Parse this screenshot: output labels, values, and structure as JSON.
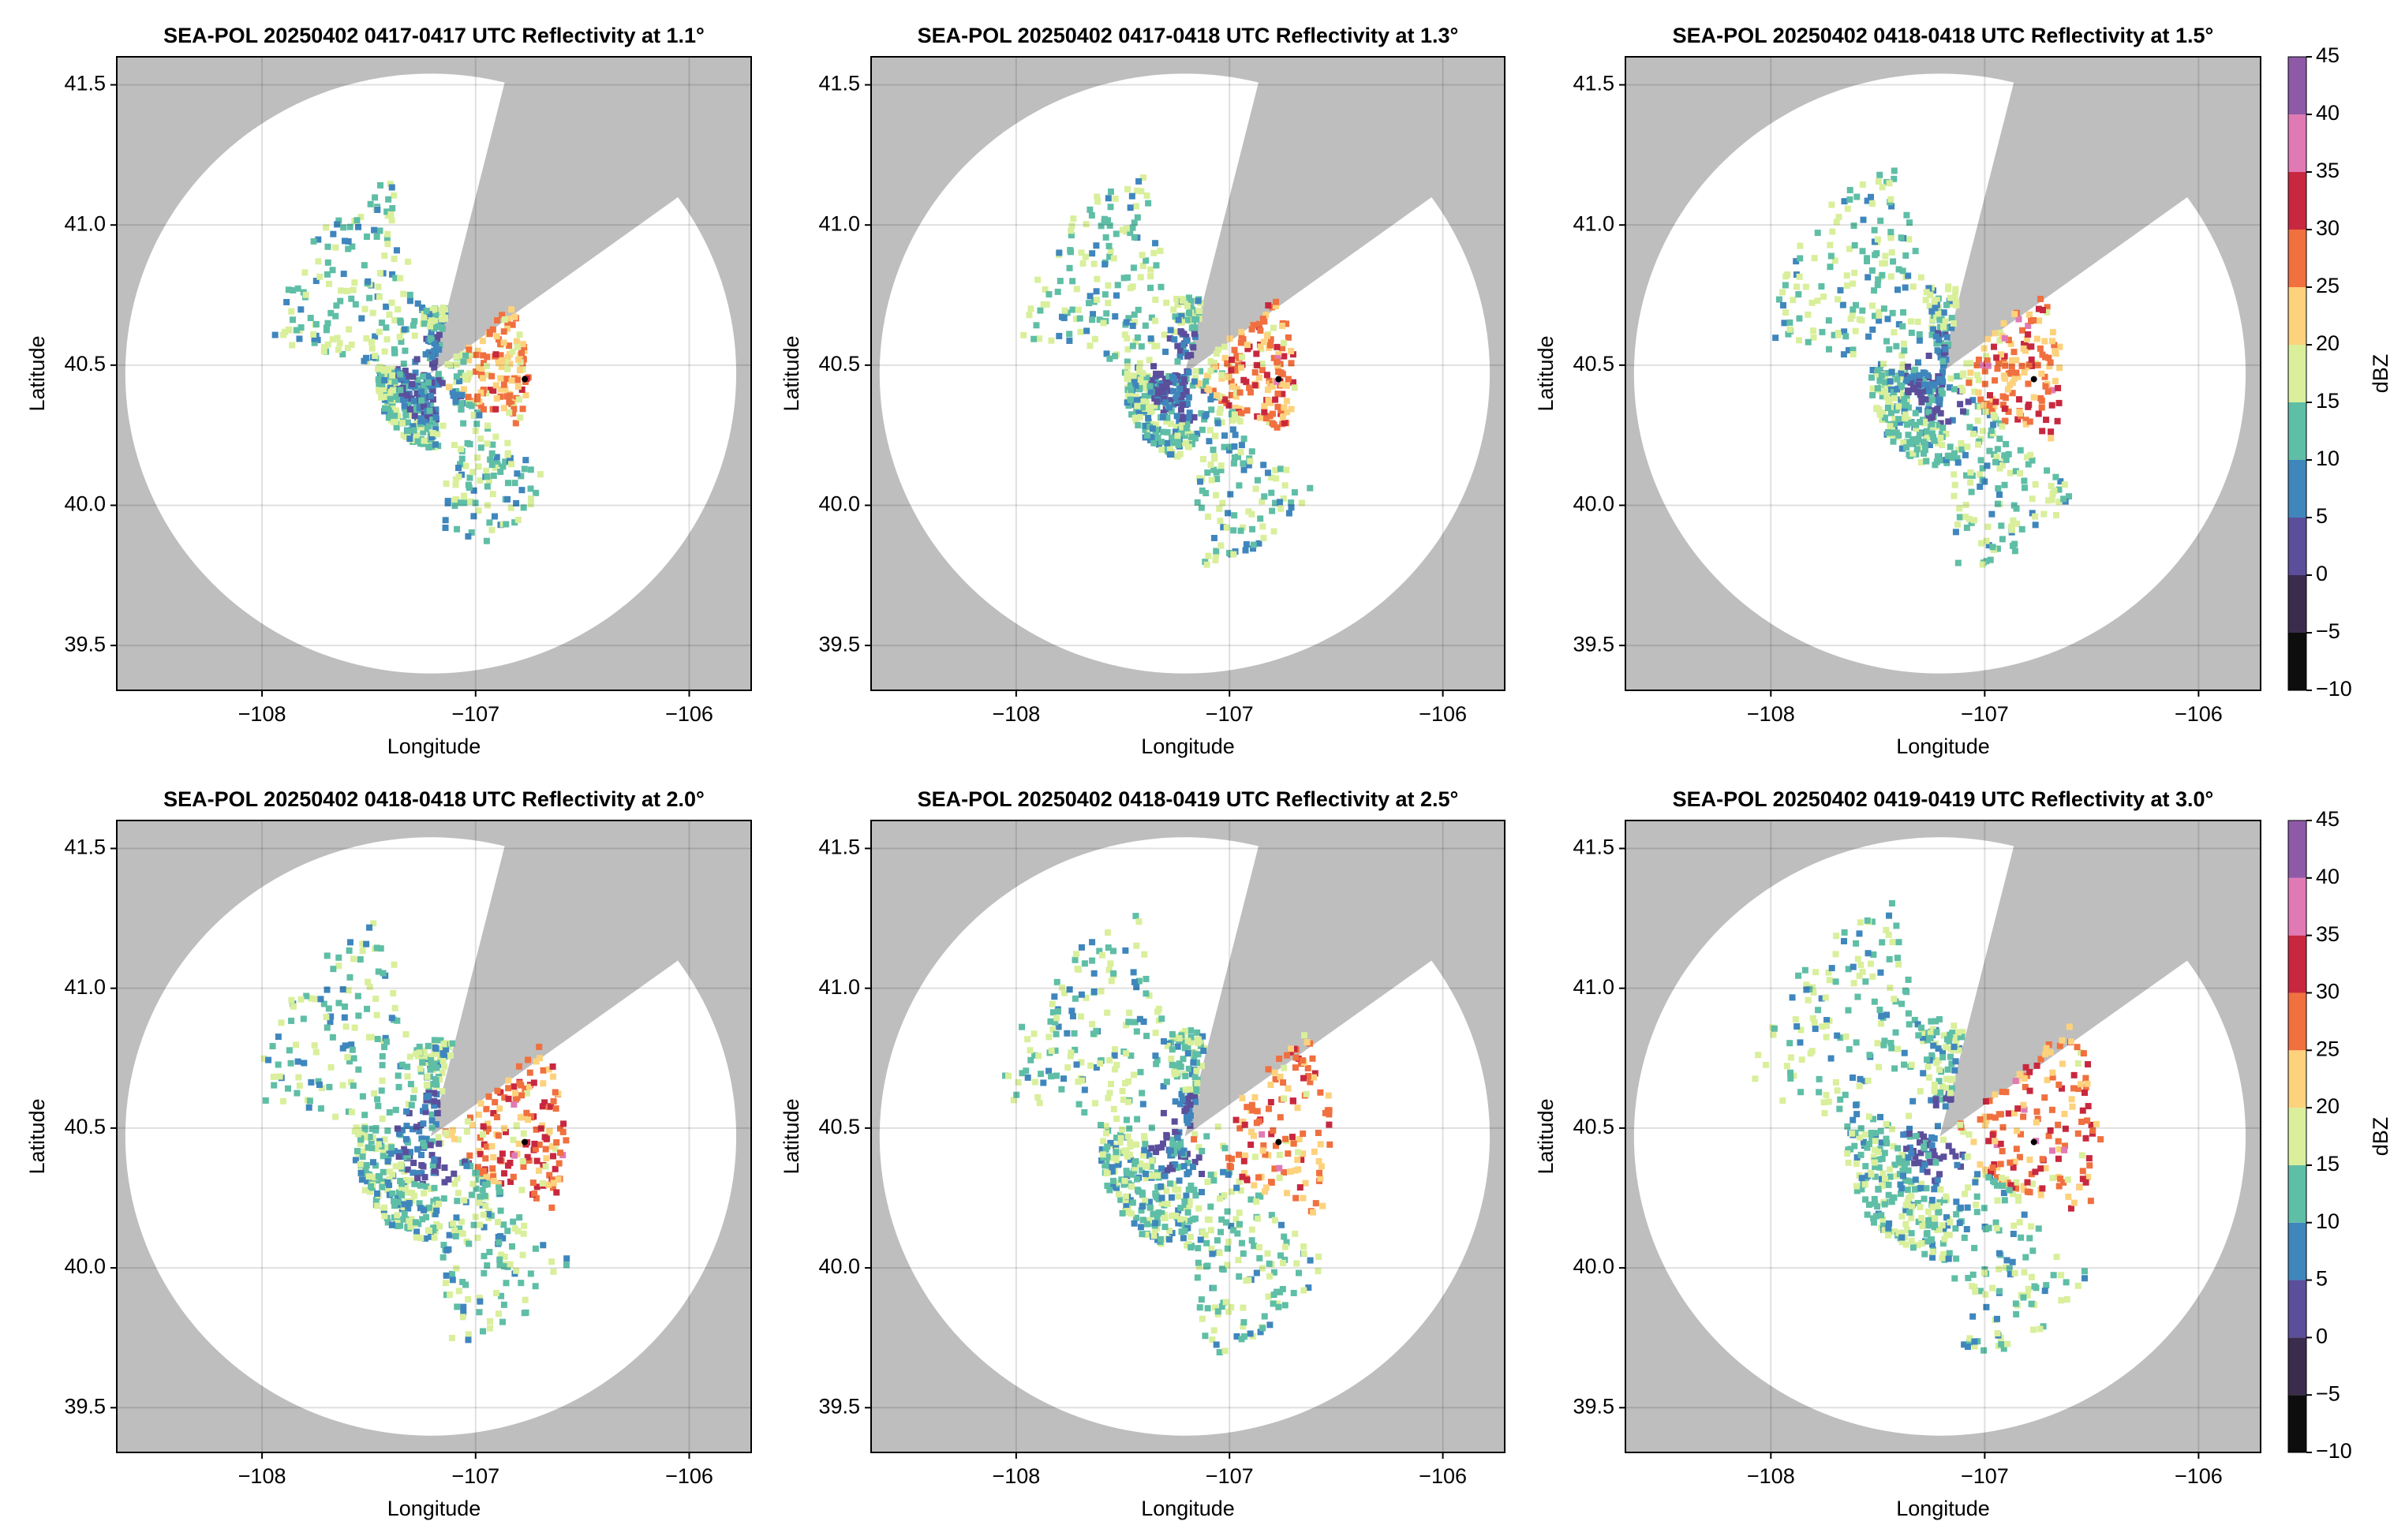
{
  "chart_data": [
    {
      "type": "radar-ppi",
      "title": "SEA-POL 20250402 0417-0417 UTC Reflectivity at 1.1°",
      "xlabel": "Longitude",
      "ylabel": "Latitude",
      "xlim": [
        -108.68,
        -105.71
      ],
      "ylim": [
        39.34,
        41.6
      ],
      "xticks": [
        {
          "value": -108,
          "label": "−108"
        },
        {
          "value": -107,
          "label": "−107"
        },
        {
          "value": -106,
          "label": "−106"
        }
      ],
      "yticks": [
        39.5,
        {
          "value": 40,
          "label": "40.0"
        },
        40.5,
        {
          "value": 41,
          "label": "41.0"
        },
        41.5
      ],
      "grid": true
    },
    {
      "type": "radar-ppi",
      "title": "SEA-POL 20250402 0417-0418 UTC Reflectivity at 1.3°",
      "xlabel": "Longitude",
      "ylabel": "Latitude",
      "xlim": [
        -108.68,
        -105.71
      ],
      "ylim": [
        39.34,
        41.6
      ],
      "xticks": [
        {
          "value": -108,
          "label": "−108"
        },
        {
          "value": -107,
          "label": "−107"
        },
        {
          "value": -106,
          "label": "−106"
        }
      ],
      "yticks": [
        39.5,
        {
          "value": 40,
          "label": "40.0"
        },
        40.5,
        {
          "value": 41,
          "label": "41.0"
        },
        41.5
      ],
      "grid": true
    },
    {
      "type": "radar-ppi",
      "title": "SEA-POL 20250402 0418-0418 UTC Reflectivity at 1.5°",
      "xlabel": "Longitude",
      "ylabel": "Latitude",
      "xlim": [
        -108.68,
        -105.71
      ],
      "ylim": [
        39.34,
        41.6
      ],
      "xticks": [
        {
          "value": -108,
          "label": "−108"
        },
        {
          "value": -107,
          "label": "−107"
        },
        {
          "value": -106,
          "label": "−106"
        }
      ],
      "yticks": [
        39.5,
        {
          "value": 40,
          "label": "40.0"
        },
        40.5,
        {
          "value": 41,
          "label": "41.0"
        },
        41.5
      ],
      "grid": true,
      "colorbar": {
        "label": "dBZ",
        "lim": [
          -10,
          45
        ],
        "ticks": [
          {
            "value": -10,
            "label": "−10"
          },
          {
            "value": -5,
            "label": "−5"
          },
          0,
          5,
          10,
          15,
          20,
          25,
          30,
          35,
          40,
          45
        ],
        "colors": [
          "#0d0d0d",
          "#3b2c4e",
          "#5b4f9c",
          "#3f86bd",
          "#5fbea6",
          "#d9ef9b",
          "#fdd27d",
          "#f0703f",
          "#c8283f",
          "#e07ab5",
          "#8e5aa8"
        ]
      }
    },
    {
      "type": "radar-ppi",
      "title": "SEA-POL 20250402 0418-0418 UTC Reflectivity at 2.0°",
      "xlabel": "Longitude",
      "ylabel": "Latitude",
      "xlim": [
        -108.68,
        -105.71
      ],
      "ylim": [
        39.34,
        41.6
      ],
      "xticks": [
        {
          "value": -108,
          "label": "−108"
        },
        {
          "value": -107,
          "label": "−107"
        },
        {
          "value": -106,
          "label": "−106"
        }
      ],
      "yticks": [
        39.5,
        {
          "value": 40,
          "label": "40.0"
        },
        40.5,
        {
          "value": 41,
          "label": "41.0"
        },
        41.5
      ],
      "grid": true
    },
    {
      "type": "radar-ppi",
      "title": "SEA-POL 20250402 0418-0419 UTC Reflectivity at 2.5°",
      "xlabel": "Longitude",
      "ylabel": "Latitude",
      "xlim": [
        -108.68,
        -105.71
      ],
      "ylim": [
        39.34,
        41.6
      ],
      "xticks": [
        {
          "value": -108,
          "label": "−108"
        },
        {
          "value": -107,
          "label": "−107"
        },
        {
          "value": -106,
          "label": "−106"
        }
      ],
      "yticks": [
        39.5,
        {
          "value": 40,
          "label": "40.0"
        },
        40.5,
        {
          "value": 41,
          "label": "41.0"
        },
        41.5
      ],
      "grid": true
    },
    {
      "type": "radar-ppi",
      "title": "SEA-POL 20250402 0419-0419 UTC Reflectivity at 3.0°",
      "xlabel": "Longitude",
      "ylabel": "Latitude",
      "xlim": [
        -108.68,
        -105.71
      ],
      "ylim": [
        39.34,
        41.6
      ],
      "xticks": [
        {
          "value": -108,
          "label": "−108"
        },
        {
          "value": -107,
          "label": "−107"
        },
        {
          "value": -106,
          "label": "−106"
        }
      ],
      "yticks": [
        39.5,
        {
          "value": 40,
          "label": "40.0"
        },
        40.5,
        {
          "value": 41,
          "label": "41.0"
        },
        41.5
      ],
      "grid": true,
      "colorbar": {
        "label": "dBZ",
        "lim": [
          -10,
          45
        ],
        "ticks": [
          {
            "value": -10,
            "label": "−10"
          },
          {
            "value": -5,
            "label": "−5"
          },
          0,
          5,
          10,
          15,
          20,
          25,
          30,
          35,
          40,
          45
        ],
        "colors": [
          "#0d0d0d",
          "#3b2c4e",
          "#5b4f9c",
          "#3f86bd",
          "#5fbea6",
          "#d9ef9b",
          "#fdd27d",
          "#f0703f",
          "#c8283f",
          "#e07ab5",
          "#8e5aa8"
        ]
      }
    }
  ]
}
